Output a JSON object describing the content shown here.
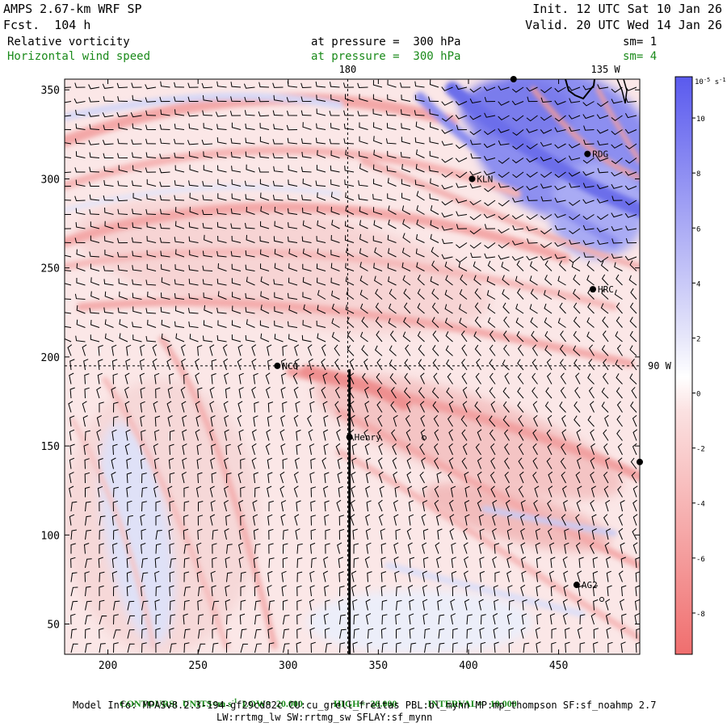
{
  "header": {
    "model_title": "AMPS 2.67-km WRF SP",
    "forecast": "Fcst.  104 h",
    "init": "Init. 12 UTC Sat 10 Jan 26",
    "valid": "Valid. 20 UTC Wed 14 Jan 26",
    "field1_name": "Relative vorticity",
    "field1_level": "at pressure =  300 hPa",
    "field1_sm": "sm= 1",
    "field2_name": "Horizontal wind speed",
    "field2_level": "at pressure =  300 hPa",
    "field2_sm": "sm= 4"
  },
  "footer": {
    "contours": "CONTOURS:  UNITS=m s",
    "contours_sup": "-1",
    "low": "LOW=  20.000",
    "high": "HIGH=  20.000",
    "interval": "INTERVAL=   10.000",
    "model_info_1": "Model Info: MPASv8.2.3-194-gf29cd82c CU:cu_grell_freitas PBL:bl_mynn MP:mp_thompson SF:sf_noahmp 2.7",
    "model_info_2": "LW:rrtmg_lw SW:rrtmg_sw SFLAY:sf_mynn"
  },
  "colors": {
    "positive": "#5a5aee",
    "negative": "#f06e6e",
    "text_green": "#1a8a1a"
  },
  "chart_data": {
    "type": "heatmap",
    "xlim": [
      176,
      495
    ],
    "ylim": [
      33,
      356
    ],
    "x_ticks": [
      200,
      250,
      300,
      350,
      400,
      450
    ],
    "y_ticks": [
      50,
      100,
      150,
      200,
      250,
      300,
      350
    ],
    "meridian_labels": [
      {
        "text": "180",
        "x": 333,
        "y": 356
      },
      {
        "text": "135 W",
        "x": 476,
        "y": 356
      },
      {
        "text": "90 W",
        "x": 495,
        "y": 195
      }
    ],
    "dashed_lines": [
      {
        "orientation": "vertical",
        "x": 333
      },
      {
        "orientation": "horizontal",
        "y": 195
      }
    ],
    "cross_section_line": {
      "x": 334,
      "y_from": 33,
      "y_to": 193
    },
    "stations": [
      {
        "name": "KLN",
        "x": 402,
        "y": 300
      },
      {
        "name": "RDG",
        "x": 466,
        "y": 314
      },
      {
        "name": "HRC",
        "x": 469,
        "y": 238
      },
      {
        "name": "NCO",
        "x": 294,
        "y": 195
      },
      {
        "name": "Henry",
        "x": 334,
        "y": 155
      },
      {
        "name": "AG2",
        "x": 460,
        "y": 72
      },
      {
        "name": "",
        "x": 425,
        "y": 356
      },
      {
        "name": "",
        "x": 495,
        "y": 141
      }
    ],
    "colorbar": {
      "unit": "10",
      "unit_sup": "-5",
      "unit_suffix": " s",
      "unit_suffix_sup": "-1",
      "range": [
        -9.5,
        11.5
      ],
      "tick_labels": [
        10,
        8,
        6,
        4,
        2,
        0,
        -2,
        -4,
        -6,
        -8
      ]
    }
  }
}
